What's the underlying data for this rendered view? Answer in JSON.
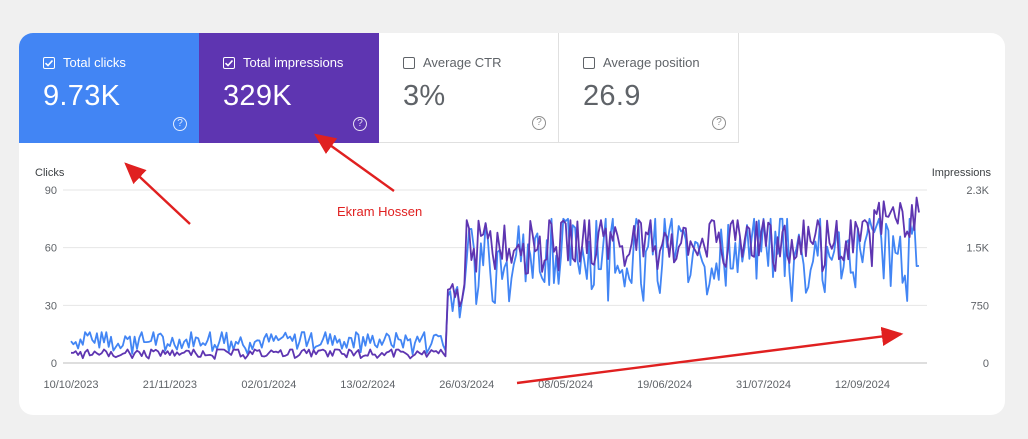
{
  "metrics": [
    {
      "label": "Total clicks",
      "value": "9.73K",
      "checked": true
    },
    {
      "label": "Total impressions",
      "value": "329K",
      "checked": true
    },
    {
      "label": "Average CTR",
      "value": "3%",
      "checked": false
    },
    {
      "label": "Average position",
      "value": "26.9",
      "checked": false
    }
  ],
  "help_glyph": "?",
  "annotation": "Ekram Hossen",
  "colors": {
    "clicks": "#4285f4",
    "impressions": "#5e35b1",
    "annotation": "#e02020"
  },
  "chart_data": {
    "type": "line",
    "y_left_label": "Clicks",
    "y_right_label": "Impressions",
    "y_left_ticks": [
      "90",
      "60",
      "30",
      "0"
    ],
    "y_right_ticks": [
      "2.3K",
      "1.5K",
      "750",
      "0"
    ],
    "y_left_range": [
      0,
      90
    ],
    "y_right_range": [
      0,
      2300
    ],
    "x_ticks": [
      "10/10/2023",
      "21/11/2023",
      "02/01/2024",
      "13/02/2024",
      "26/03/2024",
      "08/05/2024",
      "19/06/2024",
      "31/07/2024",
      "12/09/2024"
    ],
    "x_range": [
      "2023-10-10",
      "2024-10-04"
    ],
    "grid": true,
    "series": [
      {
        "name": "Clicks",
        "axis": "left",
        "phases": [
          {
            "from": "2023-10-10",
            "to": "2024-03-18",
            "min": 2,
            "max": 16
          },
          {
            "from": "2024-03-18",
            "to": "2024-03-26",
            "min": 20,
            "max": 40
          },
          {
            "from": "2024-03-26",
            "to": "2024-10-04",
            "min": 22,
            "max": 75
          }
        ]
      },
      {
        "name": "Impressions",
        "axis": "right",
        "phases": [
          {
            "from": "2023-10-10",
            "to": "2024-03-18",
            "min": 30,
            "max": 180
          },
          {
            "from": "2024-03-18",
            "to": "2024-03-26",
            "min": 550,
            "max": 1050
          },
          {
            "from": "2024-03-26",
            "to": "2024-09-15",
            "min": 1050,
            "max": 1900
          },
          {
            "from": "2024-09-15",
            "to": "2024-10-04",
            "min": 1350,
            "max": 2200
          }
        ]
      }
    ]
  }
}
